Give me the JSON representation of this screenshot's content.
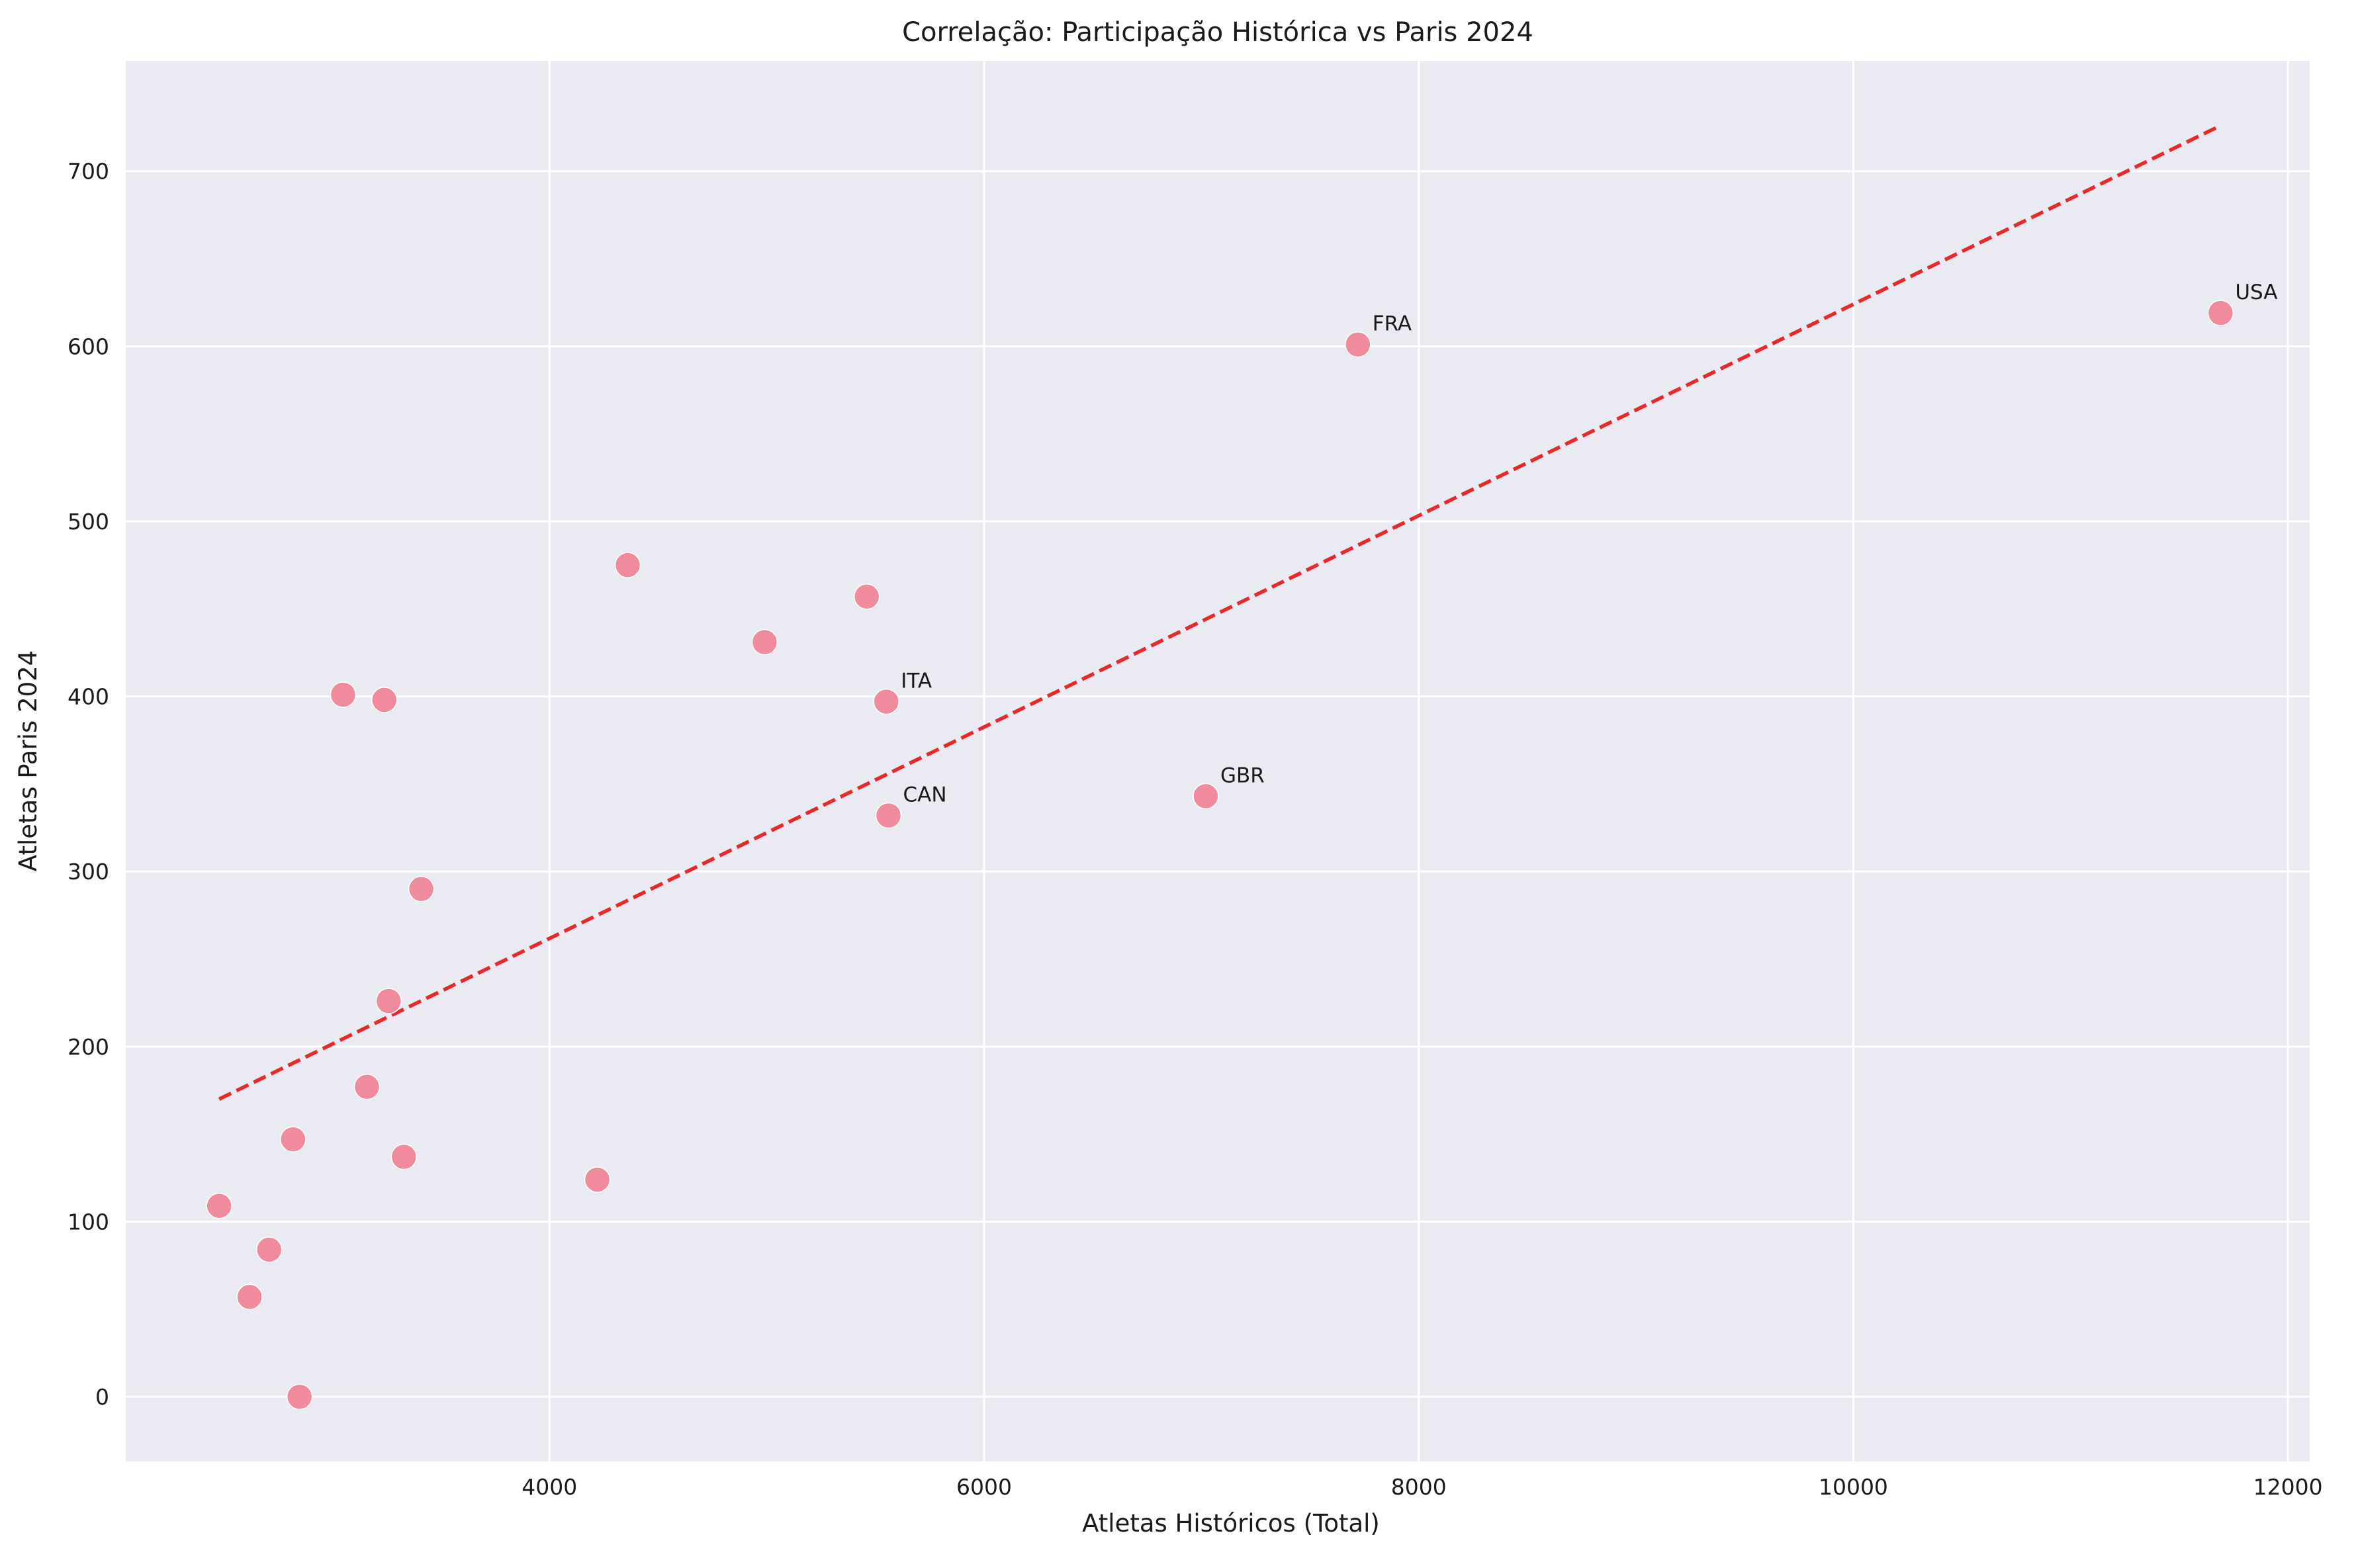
{
  "chart_data": {
    "type": "scatter",
    "title": "Correlação: Participação Histórica vs Paris 2024",
    "xlabel": "Atletas Históricos (Total)",
    "ylabel": "Atletas Paris 2024",
    "xlim": [
      2050,
      12100
    ],
    "ylim": [
      -37,
      763
    ],
    "x_ticks": [
      4000,
      6000,
      8000,
      10000,
      12000
    ],
    "y_ticks": [
      0,
      100,
      200,
      300,
      400,
      500,
      600,
      700
    ],
    "grid": true,
    "colors": {
      "background": "#eaeaf2",
      "points": "#f08a9d",
      "trend": "#e8292b",
      "grid": "#ffffff"
    },
    "points": [
      {
        "x": 11690,
        "y": 619,
        "label": "USA"
      },
      {
        "x": 7720,
        "y": 601,
        "label": "FRA"
      },
      {
        "x": 7020,
        "y": 343,
        "label": "GBR"
      },
      {
        "x": 5550,
        "y": 397,
        "label": "ITA"
      },
      {
        "x": 5560,
        "y": 332,
        "label": "CAN"
      },
      {
        "x": 4360,
        "y": 475,
        "label": ""
      },
      {
        "x": 5460,
        "y": 457,
        "label": ""
      },
      {
        "x": 4990,
        "y": 431,
        "label": ""
      },
      {
        "x": 3050,
        "y": 401,
        "label": ""
      },
      {
        "x": 3240,
        "y": 398,
        "label": ""
      },
      {
        "x": 3410,
        "y": 290,
        "label": ""
      },
      {
        "x": 3260,
        "y": 226,
        "label": ""
      },
      {
        "x": 3160,
        "y": 177,
        "label": ""
      },
      {
        "x": 2820,
        "y": 147,
        "label": ""
      },
      {
        "x": 3330,
        "y": 137,
        "label": ""
      },
      {
        "x": 4220,
        "y": 124,
        "label": ""
      },
      {
        "x": 2480,
        "y": 109,
        "label": ""
      },
      {
        "x": 2710,
        "y": 84,
        "label": ""
      },
      {
        "x": 2620,
        "y": 57,
        "label": ""
      },
      {
        "x": 2850,
        "y": 0,
        "label": ""
      }
    ],
    "trendline": {
      "x": [
        2480,
        11690
      ],
      "y": [
        170,
        726
      ]
    }
  }
}
